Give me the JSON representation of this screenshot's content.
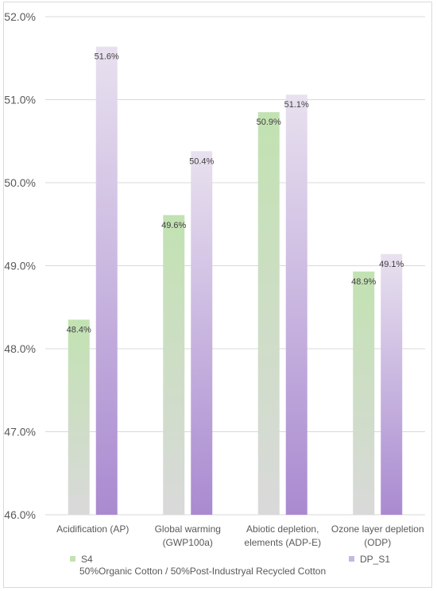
{
  "chart_data": {
    "type": "bar",
    "categories": [
      [
        "Acidification (AP)"
      ],
      [
        "Global warming",
        "(GWP100a)"
      ],
      [
        "Abiotic depletion,",
        "elements (ADP-E)"
      ],
      [
        "Ozone layer depletion",
        "(ODP)"
      ]
    ],
    "series": [
      {
        "name": "S4",
        "name_line2": "50%Organic Cotton / 50%Post-Industryal Recycled Cotton",
        "values": [
          48.35,
          49.61,
          50.85,
          48.93
        ],
        "labels": [
          "48.4%",
          "49.6%",
          "50.9%",
          "48.9%"
        ],
        "color_top": "#c2e2b2",
        "color_bottom": "#d9d9d9"
      },
      {
        "name": "DP_S1",
        "values": [
          51.64,
          50.38,
          51.06,
          49.14
        ],
        "labels": [
          "51.6%",
          "50.4%",
          "51.1%",
          "49.1%"
        ],
        "color_top": "#e8e1ef",
        "color_bottom": "#a98ad0"
      }
    ],
    "y_ticks": [
      "46.0%",
      "47.0%",
      "48.0%",
      "49.0%",
      "50.0%",
      "51.0%",
      "52.0%"
    ],
    "ylim": [
      46,
      52
    ],
    "grid": true,
    "legend_position": "bottom"
  }
}
